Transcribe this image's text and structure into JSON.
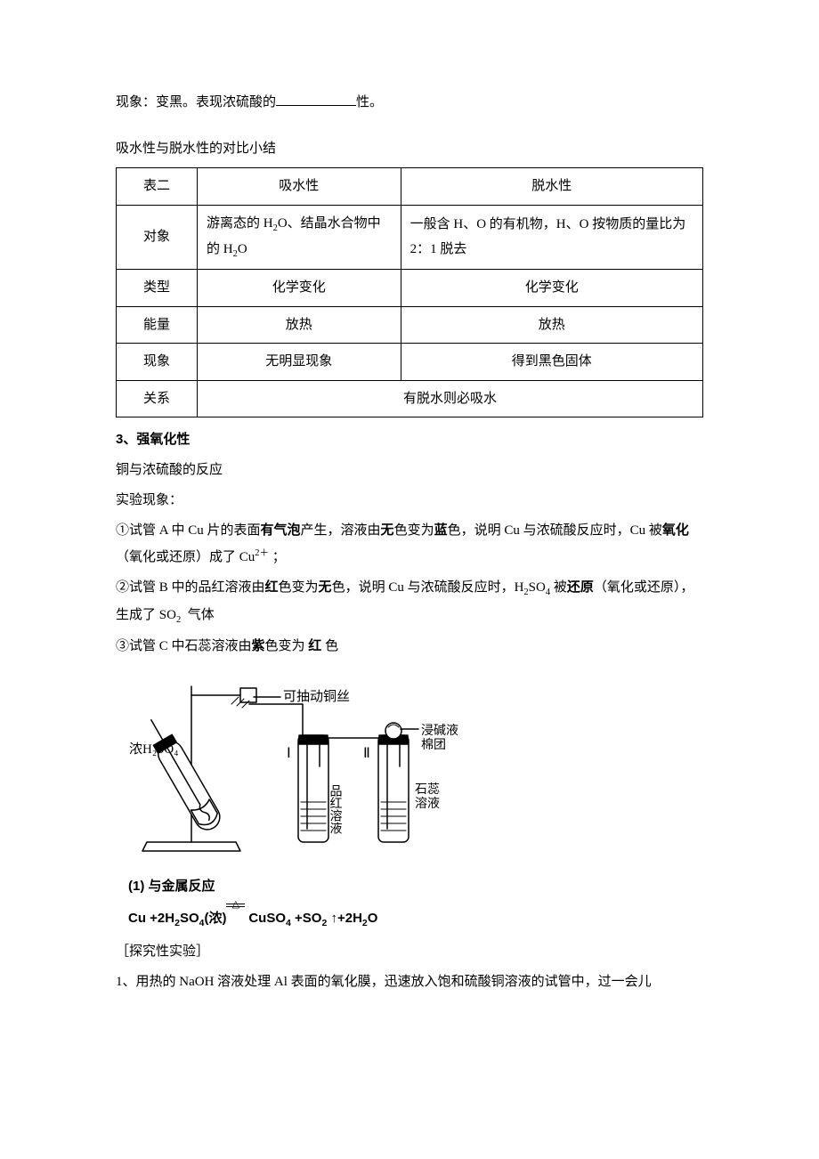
{
  "intro": {
    "line1_pre": "现象：变黑。表现浓硫酸的",
    "line1_post": "性。"
  },
  "compare_title": "吸水性与脱水性的对比小结",
  "table": {
    "rows": [
      {
        "h": "表二",
        "a": "吸水性",
        "b": "脱水性",
        "a_center": true,
        "b_center": true
      },
      {
        "h": "对象",
        "a": "游离态的 H<sub>2</sub>O、结晶水合物中的 H<sub>2</sub>O",
        "b": "一般含 H、O 的有机物，H、O 按物质的量比为 2：1 脱去",
        "a_center": false,
        "b_center": false
      },
      {
        "h": "类型",
        "a": "化学变化",
        "b": "化学变化",
        "a_center": true,
        "b_center": true
      },
      {
        "h": "能量",
        "a": "放热",
        "b": "放热",
        "a_center": true,
        "b_center": true
      },
      {
        "h": "现象",
        "a": "无明显现象",
        "b": "得到黑色固体",
        "a_center": true,
        "b_center": true
      }
    ],
    "rel_h": "关系",
    "rel_v": "有脱水则必吸水"
  },
  "sec3": {
    "title": "3、强氧化性",
    "line_react": "铜与浓硫酸的反应",
    "line_phen": "实验现象：",
    "p1": "①试管 A 中 Cu 片的表面<span class=\"bold\">有气泡</span>产生，溶液由<span class=\"bold\">无</span>色变为<span class=\"bold\">蓝</span>色，说明 Cu 与浓硫酸反应时，Cu 被<span class=\"bold\">氧化</span>（氧化或还原）成了 Cu<sup>2＋</sup>&nbsp;；",
    "p2": "②试管 B 中的品红溶液由<span class=\"bold\">红</span>色变为<span class=\"bold\">无</span>色，说明 Cu 与浓硫酸反应时，H<sub>2</sub>SO<sub>4</sub> 被<span class=\"bold\">还原</span>（氧化或还原），生成了 SO<sub>2</sub>&nbsp; 气体",
    "p3": "③试管 C 中石蕊溶液由<span class=\"bold\">紫</span>色变为 <span class=\"bold\">红</span> 色"
  },
  "diagram": {
    "labels": {
      "wire": "可抽动铜丝",
      "acid": "浓H₂SO₄",
      "one": "Ⅰ",
      "two": "Ⅱ",
      "pinhong": "品红溶液",
      "shirui": "石蕊溶液",
      "cotton1": "浸碱液",
      "cotton2": "棉团"
    },
    "stroke": "#000000",
    "stroke_width": 1.5,
    "bg": "#ffffff",
    "font_family_cn": "SimSun, 宋体, serif"
  },
  "metal": {
    "title": "(1) 与金属反应",
    "eq_l": "Cu +2H<sub>2</sub>SO<sub>4</sub>(浓)",
    "eq_r": " CuSO<sub>4</sub> +SO<sub>2</sub> ↑+2H<sub>2</sub>O"
  },
  "explore": {
    "title": "［探究性实验］",
    "q1": "1、用热的 NaOH 溶液处理 Al 表面的氧化膜，迅速放入饱和硫酸铜溶液的试管中，过一会儿"
  }
}
